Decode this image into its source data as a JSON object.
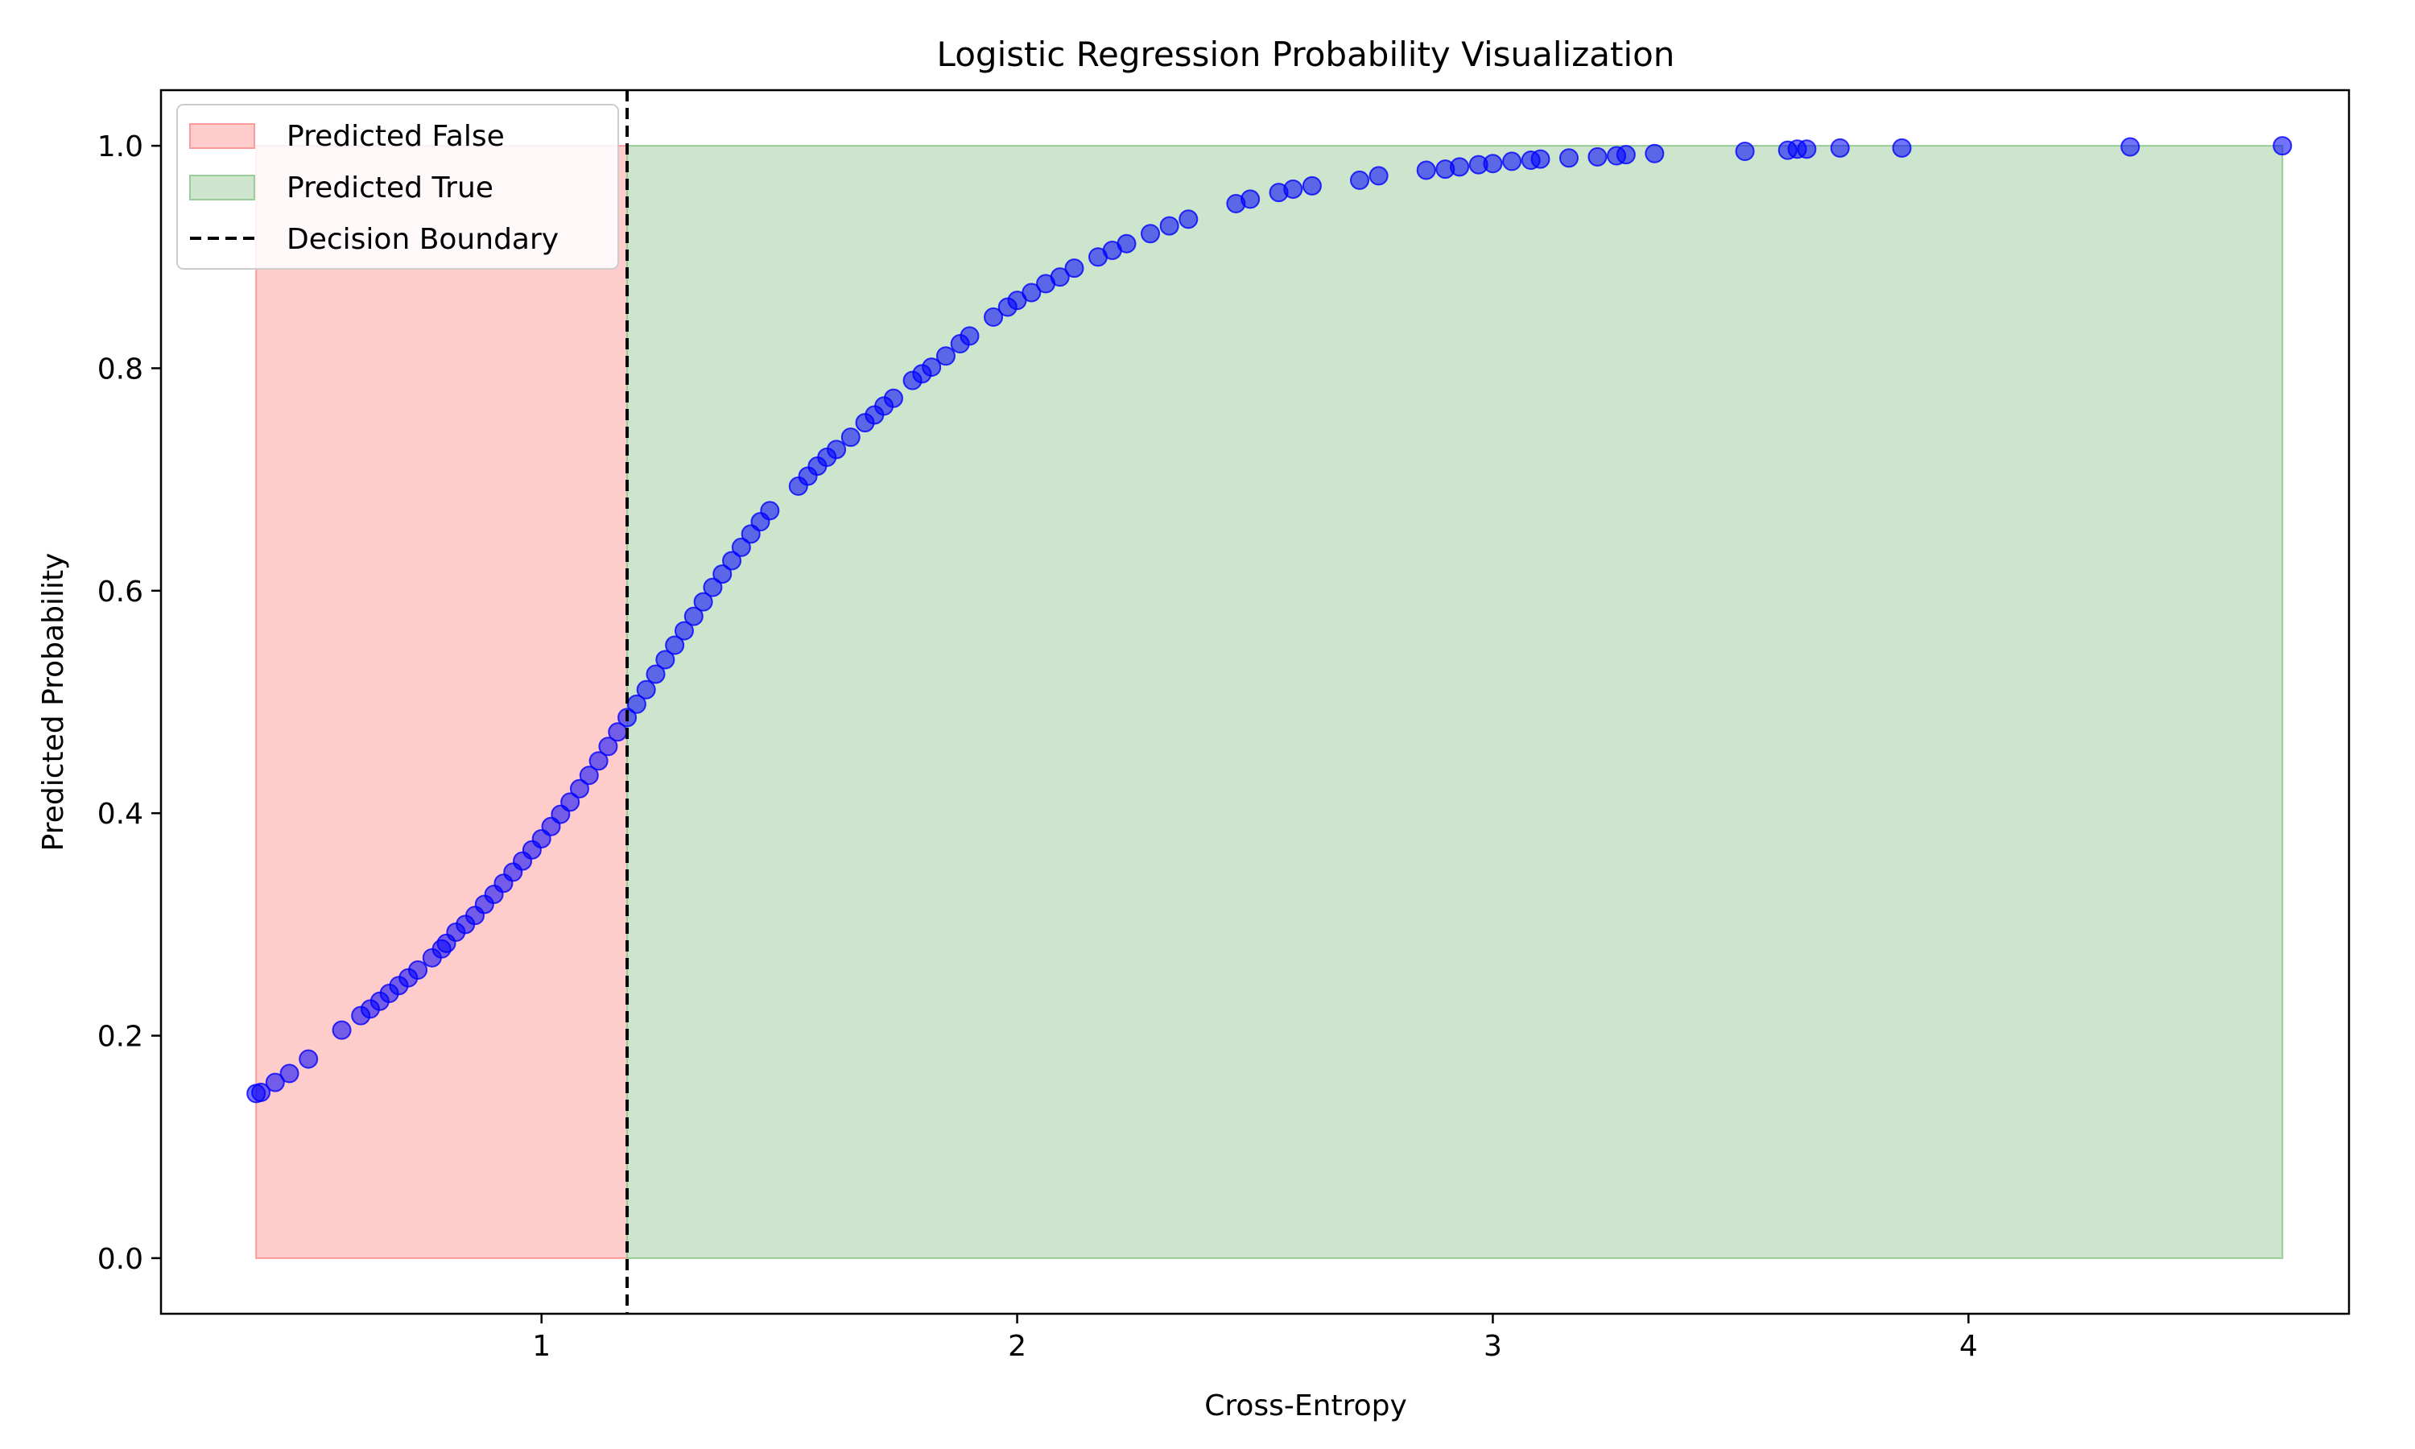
{
  "chart_data": {
    "type": "scatter",
    "title": "Logistic Regression Probability Visualization",
    "xlabel": "Cross-Entropy",
    "ylabel": "Predicted Probability",
    "xlim": [
      0.2,
      4.8
    ],
    "ylim": [
      -0.05,
      1.05
    ],
    "xticks": [
      1,
      2,
      3,
      4
    ],
    "yticks": [
      0.0,
      0.2,
      0.4,
      0.6,
      0.8,
      1.0
    ],
    "grid": false,
    "legend_position": "top-left",
    "legend": [
      {
        "label": "Predicted False",
        "kind": "patch",
        "color": "#ffcccc",
        "edge": "#ff9999"
      },
      {
        "label": "Predicted True",
        "kind": "patch",
        "color": "#cce5cc",
        "edge": "#99cc99"
      },
      {
        "label": "Decision Boundary",
        "kind": "dashed-line",
        "color": "#000000"
      }
    ],
    "regions": [
      {
        "name": "Predicted False",
        "x_start": 0.4,
        "x_end": 1.18,
        "y_start": 0.0,
        "y_end": 1.0,
        "color": "#ffcccc",
        "edge": "#ff9999"
      },
      {
        "name": "Predicted True",
        "x_start": 1.18,
        "x_end": 4.66,
        "y_start": 0.0,
        "y_end": 1.0,
        "color": "#cce5cc",
        "edge": "#99cc99"
      }
    ],
    "decision_boundary": {
      "x": 1.18
    },
    "series": [
      {
        "color": "#0000ff",
        "points": [
          [
            0.4,
            0.148
          ],
          [
            0.41,
            0.149
          ],
          [
            0.44,
            0.158
          ],
          [
            0.47,
            0.166
          ],
          [
            0.51,
            0.179
          ],
          [
            0.58,
            0.205
          ],
          [
            0.62,
            0.218
          ],
          [
            0.64,
            0.224
          ],
          [
            0.66,
            0.231
          ],
          [
            0.68,
            0.238
          ],
          [
            0.7,
            0.245
          ],
          [
            0.72,
            0.252
          ],
          [
            0.74,
            0.259
          ],
          [
            0.77,
            0.27
          ],
          [
            0.79,
            0.278
          ],
          [
            0.8,
            0.283
          ],
          [
            0.82,
            0.293
          ],
          [
            0.84,
            0.3
          ],
          [
            0.86,
            0.308
          ],
          [
            0.88,
            0.318
          ],
          [
            0.9,
            0.327
          ],
          [
            0.92,
            0.337
          ],
          [
            0.94,
            0.347
          ],
          [
            0.96,
            0.357
          ],
          [
            0.98,
            0.367
          ],
          [
            1.0,
            0.377
          ],
          [
            1.02,
            0.388
          ],
          [
            1.04,
            0.399
          ],
          [
            1.06,
            0.41
          ],
          [
            1.08,
            0.422
          ],
          [
            1.1,
            0.434
          ],
          [
            1.12,
            0.447
          ],
          [
            1.14,
            0.46
          ],
          [
            1.16,
            0.473
          ],
          [
            1.18,
            0.486
          ],
          [
            1.2,
            0.498
          ],
          [
            1.22,
            0.511
          ],
          [
            1.24,
            0.525
          ],
          [
            1.26,
            0.538
          ],
          [
            1.28,
            0.551
          ],
          [
            1.3,
            0.564
          ],
          [
            1.32,
            0.577
          ],
          [
            1.34,
            0.59
          ],
          [
            1.36,
            0.603
          ],
          [
            1.38,
            0.615
          ],
          [
            1.4,
            0.627
          ],
          [
            1.42,
            0.639
          ],
          [
            1.44,
            0.651
          ],
          [
            1.46,
            0.662
          ],
          [
            1.48,
            0.672
          ],
          [
            1.54,
            0.694
          ],
          [
            1.56,
            0.703
          ],
          [
            1.58,
            0.712
          ],
          [
            1.6,
            0.72
          ],
          [
            1.62,
            0.727
          ],
          [
            1.65,
            0.738
          ],
          [
            1.68,
            0.751
          ],
          [
            1.7,
            0.758
          ],
          [
            1.72,
            0.766
          ],
          [
            1.74,
            0.773
          ],
          [
            1.78,
            0.789
          ],
          [
            1.8,
            0.795
          ],
          [
            1.82,
            0.801
          ],
          [
            1.85,
            0.811
          ],
          [
            1.88,
            0.822
          ],
          [
            1.9,
            0.829
          ],
          [
            1.95,
            0.846
          ],
          [
            1.98,
            0.855
          ],
          [
            2.0,
            0.861
          ],
          [
            2.03,
            0.868
          ],
          [
            2.06,
            0.876
          ],
          [
            2.09,
            0.882
          ],
          [
            2.12,
            0.89
          ],
          [
            2.17,
            0.9
          ],
          [
            2.2,
            0.906
          ],
          [
            2.23,
            0.912
          ],
          [
            2.28,
            0.921
          ],
          [
            2.32,
            0.928
          ],
          [
            2.36,
            0.934
          ],
          [
            2.46,
            0.948
          ],
          [
            2.49,
            0.952
          ],
          [
            2.55,
            0.958
          ],
          [
            2.58,
            0.961
          ],
          [
            2.62,
            0.964
          ],
          [
            2.72,
            0.969
          ],
          [
            2.76,
            0.973
          ],
          [
            2.86,
            0.978
          ],
          [
            2.9,
            0.979
          ],
          [
            2.93,
            0.981
          ],
          [
            2.97,
            0.983
          ],
          [
            3.0,
            0.984
          ],
          [
            3.04,
            0.986
          ],
          [
            3.08,
            0.987
          ],
          [
            3.1,
            0.988
          ],
          [
            3.16,
            0.989
          ],
          [
            3.22,
            0.99
          ],
          [
            3.26,
            0.991
          ],
          [
            3.28,
            0.992
          ],
          [
            3.34,
            0.993
          ],
          [
            3.53,
            0.995
          ],
          [
            3.62,
            0.996
          ],
          [
            3.64,
            0.997
          ],
          [
            3.66,
            0.997
          ],
          [
            3.73,
            0.998
          ],
          [
            3.86,
            0.998
          ],
          [
            4.34,
            0.999
          ],
          [
            4.66,
            1.0
          ]
        ]
      }
    ]
  }
}
